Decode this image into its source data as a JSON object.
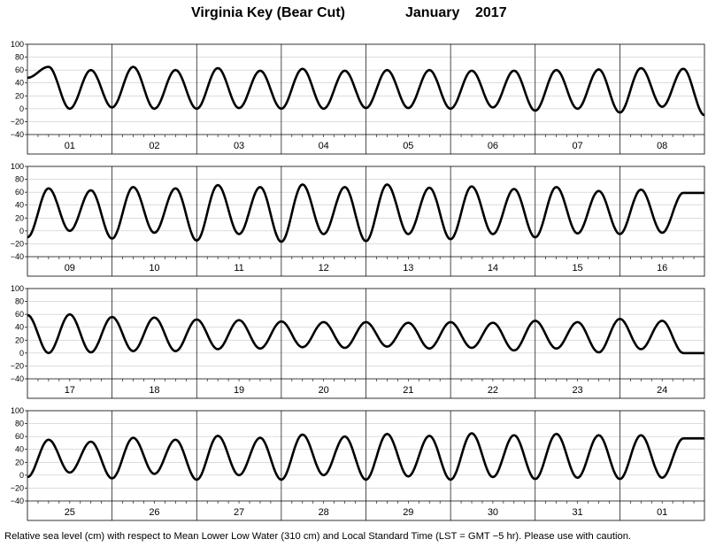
{
  "title": {
    "location": "Virginia Key (Bear Cut)",
    "month": "January",
    "year": "2017"
  },
  "caption": "Relative sea level (cm) with respect to Mean Lower Low Water (310 cm) and Local Standard Time (LST = GMT −5 hr). Please use with caution.",
  "chart_data": [
    {
      "type": "line",
      "ylim": [
        -40,
        100
      ],
      "yticks": [
        "100",
        "80",
        "60",
        "40",
        "20",
        "0",
        "−20",
        "−40"
      ],
      "grid": "vertical lines at day boundaries",
      "days": [
        "01",
        "02",
        "03",
        "04",
        "05",
        "06",
        "07",
        "08"
      ],
      "series": [
        {
          "x_unit": "hours since 00:00 LST Jan 01",
          "x": [
            0,
            6,
            12,
            18,
            24,
            30,
            36,
            42,
            48,
            54,
            60,
            66,
            72,
            78,
            84,
            90,
            96,
            102,
            108,
            114,
            120,
            126,
            132,
            138,
            144,
            150,
            156,
            162,
            168,
            174,
            180,
            186,
            192
          ],
          "values": [
            48,
            65,
            0,
            60,
            2,
            65,
            0,
            60,
            0,
            63,
            1,
            59,
            0,
            62,
            0,
            59,
            1,
            60,
            1,
            60,
            0,
            59,
            2,
            59,
            -3,
            60,
            0,
            61,
            -6,
            63,
            3,
            62,
            -10
          ]
        }
      ]
    },
    {
      "type": "line",
      "ylim": [
        -40,
        100
      ],
      "yticks": [
        "100",
        "80",
        "60",
        "40",
        "20",
        "0",
        "−20",
        "−40"
      ],
      "grid": "vertical lines at day boundaries",
      "days": [
        "09",
        "10",
        "11",
        "12",
        "13",
        "14",
        "15",
        "16"
      ],
      "series": [
        {
          "x_unit": "hours since 00:00 LST Jan 09",
          "x": [
            0,
            6,
            12,
            18,
            24,
            30,
            36,
            42,
            48,
            54,
            60,
            66,
            72,
            78,
            84,
            90,
            96,
            102,
            108,
            114,
            120,
            126,
            132,
            138,
            144,
            150,
            156,
            162,
            168,
            174,
            180,
            186,
            192
          ],
          "values": [
            -10,
            66,
            0,
            63,
            -12,
            68,
            -3,
            66,
            -15,
            71,
            -5,
            68,
            -17,
            72,
            -5,
            68,
            -16,
            72,
            -5,
            67,
            -13,
            69,
            -5,
            65,
            -10,
            68,
            -4,
            62,
            -5,
            64,
            -3,
            59,
            59
          ]
        }
      ]
    },
    {
      "type": "line",
      "ylim": [
        -40,
        100
      ],
      "yticks": [
        "100",
        "80",
        "60",
        "40",
        "20",
        "0",
        "−20",
        "−40"
      ],
      "grid": "vertical lines at day boundaries",
      "days": [
        "17",
        "18",
        "19",
        "20",
        "21",
        "22",
        "23",
        "24"
      ],
      "series": [
        {
          "x_unit": "hours since 00:00 LST Jan 17",
          "x": [
            0,
            6,
            12,
            18,
            24,
            30,
            36,
            42,
            48,
            54,
            60,
            66,
            72,
            78,
            84,
            90,
            96,
            102,
            108,
            114,
            120,
            126,
            132,
            138,
            144,
            150,
            156,
            162,
            168,
            174,
            180,
            186,
            192
          ],
          "values": [
            59,
            0,
            60,
            1,
            56,
            3,
            55,
            3,
            52,
            6,
            51,
            7,
            49,
            9,
            48,
            8,
            48,
            10,
            47,
            7,
            48,
            8,
            47,
            4,
            50,
            7,
            48,
            1,
            53,
            6,
            50,
            0,
            0
          ]
        }
      ]
    },
    {
      "type": "line",
      "ylim": [
        -40,
        100
      ],
      "yticks": [
        "100",
        "80",
        "60",
        "40",
        "20",
        "0",
        "−20",
        "−40"
      ],
      "grid": "vertical lines at day boundaries",
      "days": [
        "25",
        "26",
        "27",
        "28",
        "29",
        "30",
        "31",
        "01"
      ],
      "series": [
        {
          "x_unit": "hours since 00:00 LST Jan 25",
          "x": [
            0,
            6,
            12,
            18,
            24,
            30,
            36,
            42,
            48,
            54,
            60,
            66,
            72,
            78,
            84,
            90,
            96,
            102,
            108,
            114,
            120,
            126,
            132,
            138,
            144,
            150,
            156,
            162,
            168,
            174,
            180,
            186,
            192
          ],
          "values": [
            -3,
            55,
            4,
            52,
            -5,
            58,
            2,
            55,
            -7,
            61,
            0,
            58,
            -7,
            63,
            0,
            60,
            -7,
            64,
            -2,
            61,
            -7,
            65,
            -3,
            62,
            -6,
            64,
            -4,
            62,
            -6,
            62,
            -4,
            57,
            57
          ]
        }
      ]
    }
  ]
}
